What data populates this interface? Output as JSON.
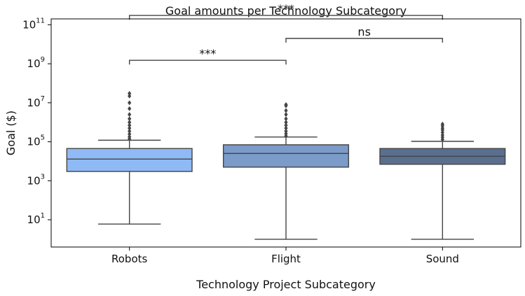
{
  "chart_data": {
    "type": "box",
    "title": "Goal amounts per Technology Subcategory",
    "xlabel": "Technology Project Subcategory",
    "ylabel": "Goal ($)",
    "yscale": "log",
    "ylim": [
      0.4,
      200000000000
    ],
    "ytick_base": "10",
    "yticks": [
      {
        "value": 10,
        "exp": "1"
      },
      {
        "value": 1000,
        "exp": "3"
      },
      {
        "value": 100000,
        "exp": "5"
      },
      {
        "value": 10000000,
        "exp": "7"
      },
      {
        "value": 1000000000,
        "exp": "9"
      },
      {
        "value": 100000000000,
        "exp": "11"
      }
    ],
    "categories": [
      "Robots",
      "Flight",
      "Sound"
    ],
    "boxes": [
      {
        "category": "Robots",
        "color": "#8fbaf5",
        "whisker_low": 6,
        "q1": 3000,
        "median": 13000,
        "q3": 45000,
        "whisker_high": 120000,
        "outliers": [
          140000,
          180000,
          250000,
          350000,
          500000,
          700000,
          1000000,
          1500000,
          2500000,
          5000000,
          10000000,
          22000000,
          30000000
        ]
      },
      {
        "category": "Flight",
        "color": "#7b9bc9",
        "whisker_low": 1,
        "q1": 5000,
        "median": 25000,
        "q3": 70000,
        "whisker_high": 175000,
        "outliers": [
          200000,
          260000,
          350000,
          500000,
          700000,
          1000000,
          1500000,
          2500000,
          4000000,
          7000000,
          8000000
        ]
      },
      {
        "category": "Sound",
        "color": "#5a6f8f",
        "whisker_low": 1,
        "q1": 7000,
        "median": 18000,
        "q3": 45000,
        "whisker_high": 105000,
        "outliers": [
          130000,
          170000,
          220000,
          300000,
          400000,
          500000,
          650000,
          800000
        ]
      }
    ],
    "annotations": [
      {
        "from": "Robots",
        "to": "Flight",
        "label": "***",
        "y": 1500000000
      },
      {
        "from": "Flight",
        "to": "Sound",
        "label": "ns",
        "y": 20000000000
      },
      {
        "from": "Robots",
        "to": "Sound",
        "label": "***",
        "y": 300000000000
      }
    ]
  }
}
